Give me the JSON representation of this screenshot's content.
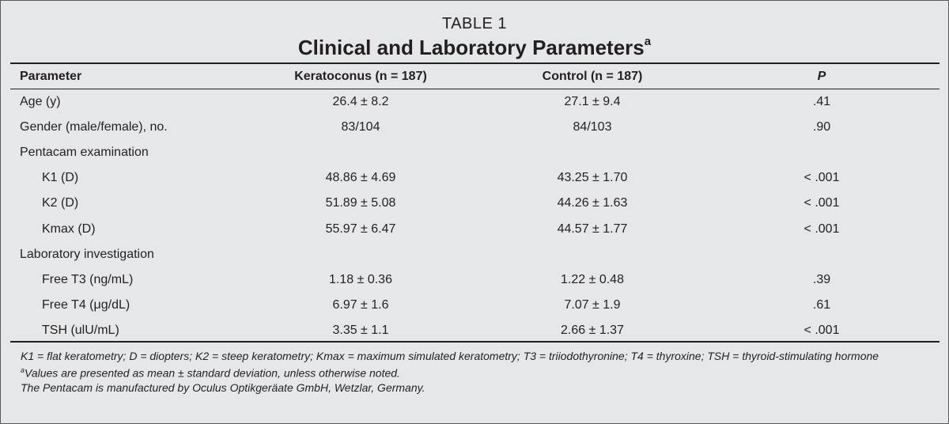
{
  "table": {
    "label": "TABLE 1",
    "title": "Clinical and Laboratory Parameters",
    "title_footnote_mark": "a",
    "headers": {
      "parameter": "Parameter",
      "keratoconus": "Keratoconus (n = 187)",
      "control": "Control (n = 187)",
      "p": "P"
    },
    "rows": [
      {
        "parameter": "Age (y)",
        "keratoconus": "26.4 ± 8.2",
        "control": "27.1 ± 9.4",
        "p": ".41",
        "indent": false
      },
      {
        "parameter": "Gender (male/female), no.",
        "keratoconus": "83/104",
        "control": "84/103",
        "p": ".90",
        "indent": false
      },
      {
        "parameter": "Pentacam examination",
        "keratoconus": "",
        "control": "",
        "p": "",
        "indent": false
      },
      {
        "parameter": "K1 (D)",
        "keratoconus": "48.86 ± 4.69",
        "control": "43.25 ± 1.70",
        "p": "< .001",
        "indent": true
      },
      {
        "parameter": "K2 (D)",
        "keratoconus": "51.89 ± 5.08",
        "control": "44.26 ± 1.63",
        "p": "< .001",
        "indent": true
      },
      {
        "parameter": "Kmax (D)",
        "keratoconus": "55.97 ± 6.47",
        "control": "44.57 ± 1.77",
        "p": "< .001",
        "indent": true
      },
      {
        "parameter": "Laboratory investigation",
        "keratoconus": "",
        "control": "",
        "p": "",
        "indent": false
      },
      {
        "parameter": "Free T3 (ng/mL)",
        "keratoconus": "1.18 ± 0.36",
        "control": "1.22 ± 0.48",
        "p": ".39",
        "indent": true
      },
      {
        "parameter": "Free T4 (μg/dL)",
        "keratoconus": "6.97 ± 1.6",
        "control": "7.07 ± 1.9",
        "p": ".61",
        "indent": true
      },
      {
        "parameter": "TSH (ulU/mL)",
        "keratoconus": "3.35 ± 1.1",
        "control": "2.66 ± 1.37",
        "p": "< .001",
        "indent": true
      }
    ],
    "footnotes": {
      "abbreviations": "K1 = flat keratometry; D = diopters; K2 = steep keratometry; Kmax = maximum simulated keratometry; T3 = triiodothyronine; T4 = thyroxine; TSH = thyroid-stimulating hormone",
      "note_a_mark": "a",
      "note_a": "Values are presented as mean ± standard deviation, unless otherwise noted.",
      "manufacturer": "The Pentacam is manufactured by Oculus Optikgeräate GmbH, Wetzlar, Germany."
    }
  }
}
